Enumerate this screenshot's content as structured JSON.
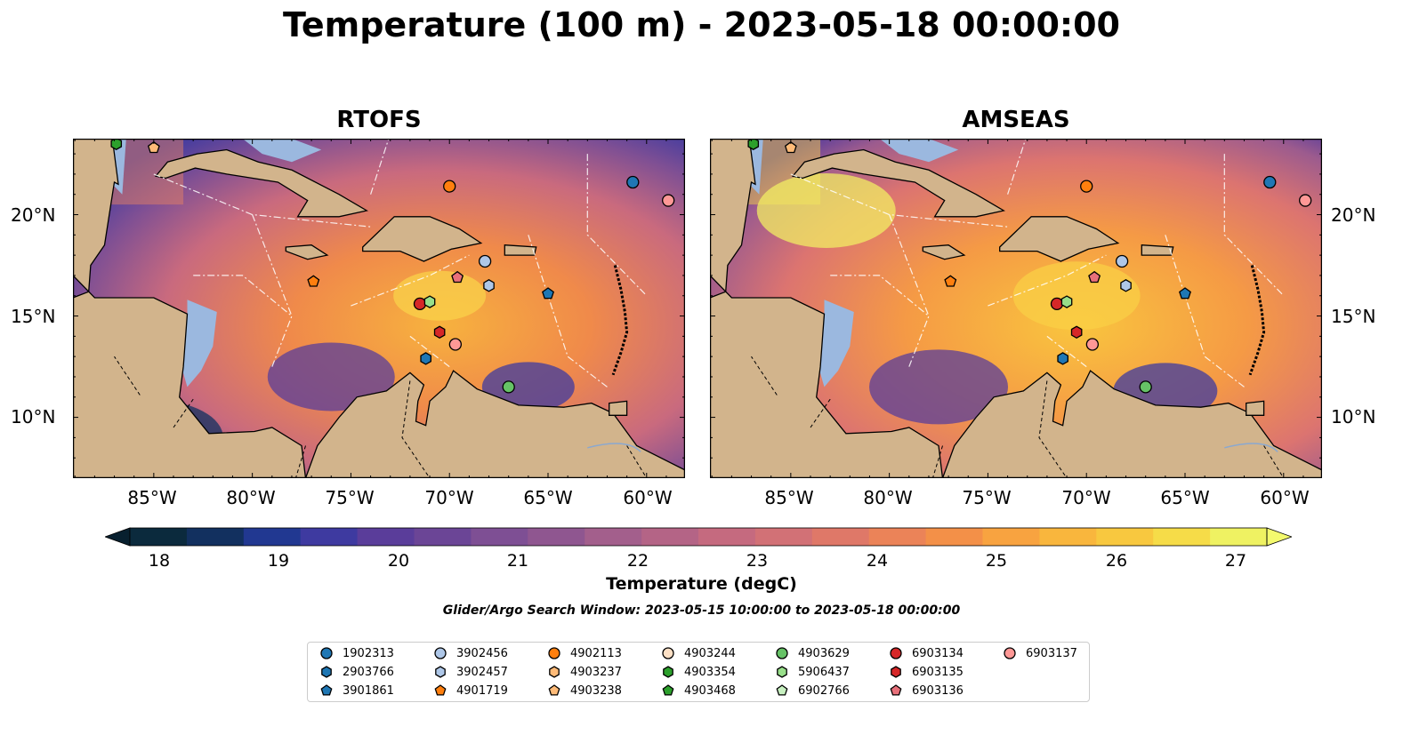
{
  "title": "Temperature (100 m) - 2023-05-18 00:00:00",
  "panels": [
    {
      "title": "RTOFS"
    },
    {
      "title": "AMSEAS"
    }
  ],
  "lat_ticks": [
    "20°N",
    "15°N",
    "10°N"
  ],
  "lon_ticks": [
    "85°W",
    "80°W",
    "75°W",
    "70°W",
    "65°W",
    "60°W"
  ],
  "colorbar": {
    "label": "Temperature (degC)",
    "ticks": [
      "18",
      "19",
      "20",
      "21",
      "22",
      "23",
      "24",
      "25",
      "26",
      "27"
    ],
    "colors": [
      "#0b2a3d",
      "#12305f",
      "#213891",
      "#3e3aa0",
      "#5a3d9a",
      "#6b4596",
      "#7e4f94",
      "#8f5690",
      "#a35f8c",
      "#b46486",
      "#c56a7f",
      "#d27176",
      "#df7868",
      "#eb8358",
      "#f39048",
      "#f8a340",
      "#f9b63d",
      "#f8c83f",
      "#f6dc48",
      "#eff262"
    ],
    "extend": "both"
  },
  "search_window": "Glider/Argo Search Window: 2023-05-15 10:00:00 to 2023-05-18 00:00:00",
  "legend": [
    {
      "id": "1902313",
      "marker": "circle",
      "color": "#1f77b4"
    },
    {
      "id": "2903766",
      "marker": "hexagon",
      "color": "#1f77b4"
    },
    {
      "id": "3901861",
      "marker": "pentagon",
      "color": "#1f77b4"
    },
    {
      "id": "3902456",
      "marker": "circle",
      "color": "#aec7e8"
    },
    {
      "id": "3902457",
      "marker": "hexagon",
      "color": "#aec7e8"
    },
    {
      "id": "4901719",
      "marker": "pentagon",
      "color": "#ff7f0e"
    },
    {
      "id": "4902113",
      "marker": "circle",
      "color": "#ff7f0e"
    },
    {
      "id": "4903237",
      "marker": "hexagon",
      "color": "#ffbb78"
    },
    {
      "id": "4903238",
      "marker": "pentagon",
      "color": "#ffbb78"
    },
    {
      "id": "4903244",
      "marker": "circle",
      "color": "#fde0c5"
    },
    {
      "id": "4903354",
      "marker": "hexagon",
      "color": "#2ca02c"
    },
    {
      "id": "4903468",
      "marker": "pentagon",
      "color": "#2ca02c"
    },
    {
      "id": "4903629",
      "marker": "circle",
      "color": "#66c266"
    },
    {
      "id": "5906437",
      "marker": "hexagon",
      "color": "#98df8a"
    },
    {
      "id": "6902766",
      "marker": "pentagon",
      "color": "#c7f0c0"
    },
    {
      "id": "6903134",
      "marker": "circle",
      "color": "#d62728"
    },
    {
      "id": "6903135",
      "marker": "hexagon",
      "color": "#d62728"
    },
    {
      "id": "6903136",
      "marker": "pentagon",
      "color": "#e8707a"
    },
    {
      "id": "6903137",
      "marker": "circle",
      "color": "#ff9896"
    }
  ],
  "floats": [
    {
      "id": "1902313",
      "lon": -60.7,
      "lat": 21.6
    },
    {
      "id": "6903137",
      "lon": -58.9,
      "lat": 20.7
    },
    {
      "id": "4902113",
      "lon": -70.0,
      "lat": 21.4
    },
    {
      "id": "3902456",
      "lon": -68.2,
      "lat": 17.7
    },
    {
      "id": "3902457",
      "lon": -68.0,
      "lat": 16.5
    },
    {
      "id": "3901861",
      "lon": -65.0,
      "lat": 16.1
    },
    {
      "id": "6903136",
      "lon": -69.6,
      "lat": 16.9
    },
    {
      "id": "4901719",
      "lon": -76.9,
      "lat": 16.7
    },
    {
      "id": "6903134",
      "lon": -71.5,
      "lat": 15.6
    },
    {
      "id": "5906437",
      "lon": -71.0,
      "lat": 15.7
    },
    {
      "id": "6903135",
      "lon": -70.5,
      "lat": 14.2
    },
    {
      "id": "6903137",
      "lon": -69.7,
      "lat": 13.6
    },
    {
      "id": "2903766",
      "lon": -71.2,
      "lat": 12.9
    },
    {
      "id": "4903629",
      "lon": -67.0,
      "lat": 11.5
    },
    {
      "id": "4903354",
      "lon": -86.9,
      "lat": 23.5
    },
    {
      "id": "4903238",
      "lon": -85.0,
      "lat": 23.3
    }
  ]
}
